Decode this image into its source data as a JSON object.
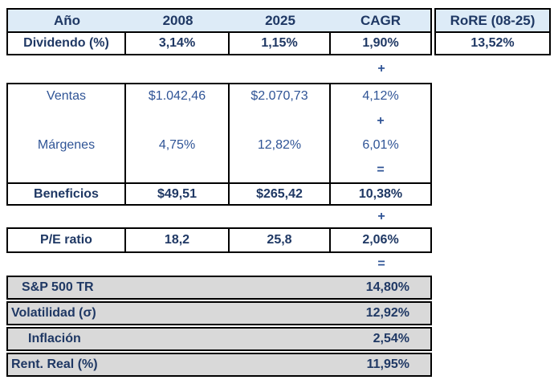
{
  "colors": {
    "header_fill": "#DDEBF7",
    "summary_fill": "#D9D9D9",
    "border": "#000000",
    "label_navy": "#1F3864",
    "value_blue": "#2F5496",
    "background": "#FFFFFF"
  },
  "operators": {
    "plus": "+",
    "equals": "="
  },
  "table_top": {
    "headers": {
      "col_a": "Año",
      "col_2008": "2008",
      "col_2025": "2025",
      "col_cagr": "CAGR",
      "col_rore": "RoRE (08-25)"
    },
    "dividendo": {
      "label": "Dividendo (%)",
      "v2008": "3,14%",
      "v2025": "1,15%",
      "cagr": "1,90%",
      "rore": "13,52%"
    }
  },
  "table_growth": {
    "ventas": {
      "label": "Ventas",
      "v2008": "$1.042,46",
      "v2025": "$2.070,73",
      "cagr": "4,12%"
    },
    "margenes": {
      "label": "Márgenes",
      "v2008": "4,75%",
      "v2025": "12,82%",
      "cagr": "6,01%"
    },
    "beneficios": {
      "label": "Beneficios",
      "v2008": "$49,51",
      "v2025": "$265,42",
      "cagr": "10,38%"
    }
  },
  "table_pe": {
    "label": "P/E ratio",
    "v2008": "18,2",
    "v2025": "25,8",
    "cagr": "2,06%"
  },
  "table_summary": {
    "rows": [
      {
        "label": "S&P 500 TR",
        "value": "14,80%"
      },
      {
        "label": "Volatilidad (σ)",
        "value": "12,92%"
      },
      {
        "label": "Inflación",
        "value": "2,54%"
      },
      {
        "label": "Rent. Real (%)",
        "value": "11,95%"
      }
    ]
  }
}
